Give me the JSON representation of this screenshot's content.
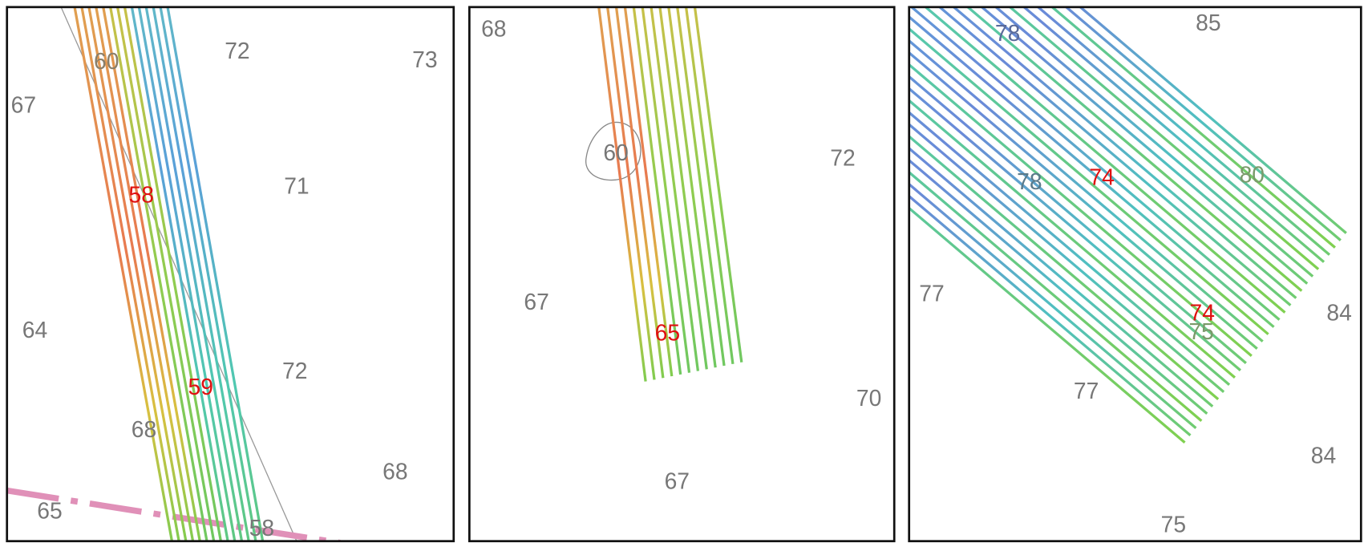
{
  "panels": [
    {
      "labels": [
        {
          "text": "60",
          "color": "#8a7f6a"
        },
        {
          "text": "72",
          "color": "#777777"
        },
        {
          "text": "73",
          "color": "#777777"
        },
        {
          "text": "67",
          "color": "#777777"
        },
        {
          "text": "58",
          "color": "#e01010"
        },
        {
          "text": "71",
          "color": "#777777"
        },
        {
          "text": "64",
          "color": "#777777"
        },
        {
          "text": "72",
          "color": "#777777"
        },
        {
          "text": "59",
          "color": "#e01010"
        },
        {
          "text": "68",
          "color": "#777777"
        },
        {
          "text": "68",
          "color": "#777777"
        },
        {
          "text": "65",
          "color": "#777777"
        },
        {
          "text": "58",
          "color": "#777777"
        }
      ]
    },
    {
      "labels": [
        {
          "text": "68",
          "color": "#777777"
        },
        {
          "text": "60",
          "color": "#777777"
        },
        {
          "text": "72",
          "color": "#777777"
        },
        {
          "text": "67",
          "color": "#777777"
        },
        {
          "text": "65",
          "color": "#e01010"
        },
        {
          "text": "70",
          "color": "#777777"
        },
        {
          "text": "67",
          "color": "#777777"
        }
      ]
    },
    {
      "labels": [
        {
          "text": "78",
          "color": "#5a6a9a"
        },
        {
          "text": "85",
          "color": "#777777"
        },
        {
          "text": "78",
          "color": "#5a7a8a"
        },
        {
          "text": "74",
          "color": "#e01010"
        },
        {
          "text": "80",
          "color": "#7a9a6a"
        },
        {
          "text": "77",
          "color": "#777777"
        },
        {
          "text": "74",
          "color": "#e01010"
        },
        {
          "text": "75",
          "color": "#7a9a6a"
        },
        {
          "text": "84",
          "color": "#777777"
        },
        {
          "text": "77",
          "color": "#777777"
        },
        {
          "text": "84",
          "color": "#777777"
        },
        {
          "text": "75",
          "color": "#777777"
        }
      ]
    }
  ]
}
